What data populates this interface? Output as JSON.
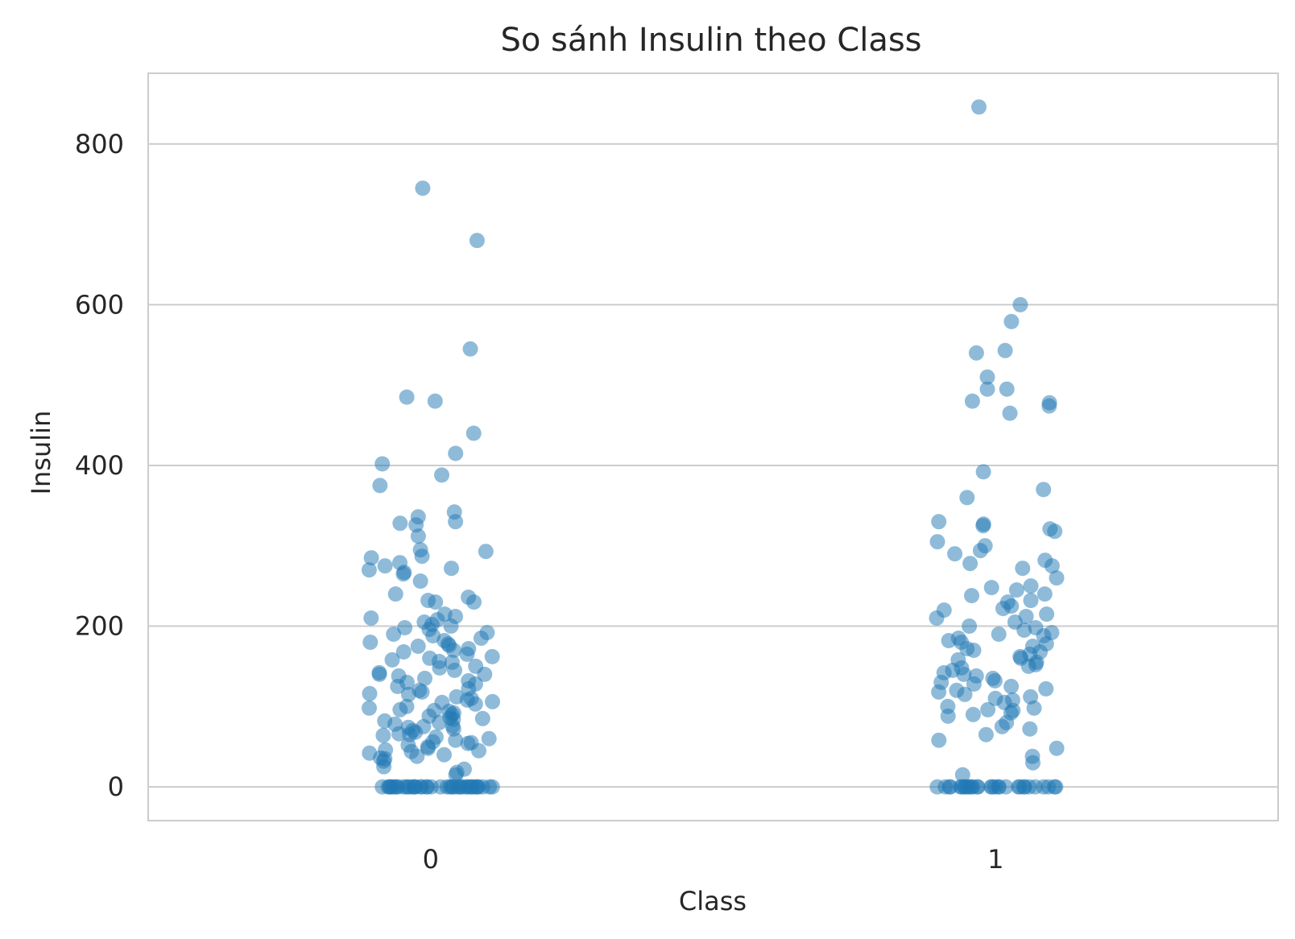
{
  "chart_data": {
    "type": "scatter",
    "title": "So sánh Insulin theo Class",
    "xlabel": "Class",
    "ylabel": "Insulin",
    "categories": [
      "0",
      "1"
    ],
    "ylim": [
      -42,
      888
    ],
    "yticks": [
      0,
      200,
      400,
      600,
      800
    ],
    "grid": "horizontal",
    "color": "#1f77b4",
    "series": [
      {
        "category": "0",
        "values": [
          0,
          0,
          0,
          0,
          0,
          0,
          0,
          0,
          0,
          0,
          0,
          0,
          0,
          0,
          0,
          0,
          0,
          0,
          0,
          0,
          0,
          0,
          0,
          0,
          0,
          0,
          0,
          0,
          0,
          0,
          0,
          0,
          0,
          0,
          0,
          0,
          0,
          0,
          0,
          0,
          745,
          680,
          545,
          485,
          480,
          440,
          415,
          402,
          388,
          375,
          342,
          336,
          330,
          328,
          326,
          312,
          295,
          293,
          287,
          285,
          279,
          275,
          272,
          270,
          267,
          265,
          256,
          240,
          236,
          232,
          230,
          230,
          215,
          212,
          210,
          208,
          205,
          202,
          200,
          198,
          196,
          192,
          190,
          188,
          185,
          182,
          180,
          178,
          176,
          175,
          172,
          170,
          168,
          165,
          162,
          160,
          158,
          156,
          155,
          150,
          148,
          145,
          142,
          140,
          140,
          138,
          135,
          132,
          130,
          128,
          125,
          122,
          120,
          118,
          116,
          115,
          112,
          110,
          108,
          106,
          105,
          103,
          100,
          98,
          96,
          95,
          94,
          92,
          90,
          88,
          86,
          85,
          84,
          82,
          80,
          78,
          76,
          75,
          74,
          72,
          70,
          68,
          66,
          65,
          64,
          62,
          60,
          58,
          56,
          55,
          54,
          52,
          50,
          48,
          46,
          45,
          44,
          42,
          40,
          38,
          36,
          35,
          32,
          25,
          22,
          18,
          15
        ]
      },
      {
        "category": "1",
        "values": [
          0,
          0,
          0,
          0,
          0,
          0,
          0,
          0,
          0,
          0,
          0,
          0,
          0,
          0,
          0,
          0,
          0,
          0,
          0,
          0,
          0,
          0,
          0,
          0,
          0,
          0,
          0,
          0,
          0,
          0,
          846,
          600,
          579,
          543,
          540,
          510,
          495,
          495,
          480,
          478,
          474,
          465,
          392,
          370,
          360,
          330,
          327,
          325,
          321,
          318,
          305,
          300,
          294,
          290,
          282,
          278,
          275,
          272,
          260,
          250,
          248,
          245,
          240,
          238,
          232,
          230,
          225,
          222,
          220,
          215,
          212,
          210,
          205,
          200,
          198,
          195,
          192,
          190,
          188,
          185,
          182,
          180,
          178,
          175,
          172,
          170,
          168,
          165,
          162,
          160,
          158,
          155,
          152,
          150,
          148,
          145,
          142,
          140,
          138,
          135,
          132,
          130,
          128,
          125,
          122,
          120,
          118,
          115,
          112,
          110,
          108,
          105,
          100,
          98,
          96,
          95,
          92,
          90,
          88,
          80,
          75,
          72,
          65,
          58,
          48,
          38,
          30,
          15
        ]
      }
    ]
  }
}
